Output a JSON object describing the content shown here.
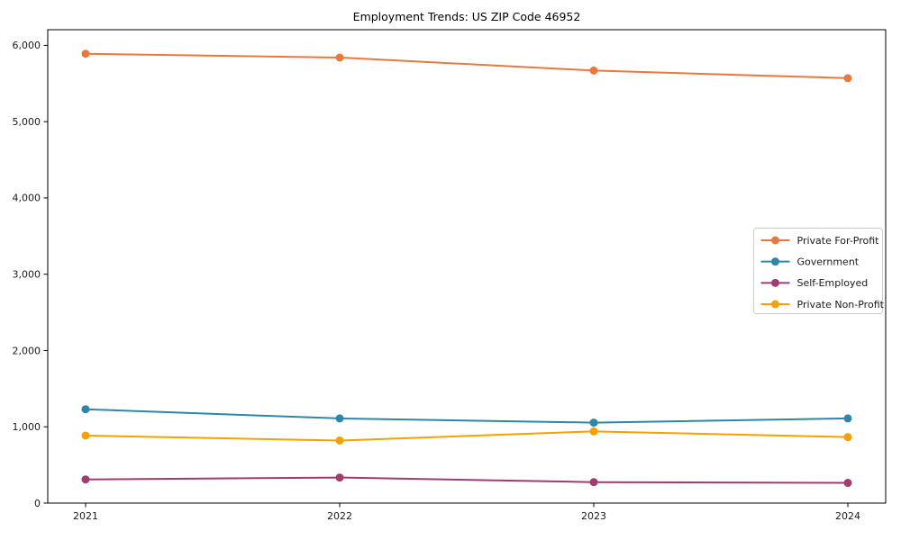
{
  "page": {
    "background": "#ffffff"
  },
  "chart_data": {
    "type": "line",
    "title": "Employment Trends: US ZIP Code 46952",
    "xlabel": "",
    "ylabel": "",
    "categories": [
      "2021",
      "2022",
      "2023",
      "2024"
    ],
    "ylim": [
      0,
      6000
    ],
    "yticks": [
      0,
      1000,
      2000,
      3000,
      4000,
      5000,
      6000
    ],
    "ytick_labels": [
      "0",
      "1,000",
      "2,000",
      "3,000",
      "4,000",
      "5,000",
      "6,000"
    ],
    "grid": false,
    "legend": {
      "position": "right-middle",
      "border_color": "#cccccc",
      "background": "#ffffff",
      "entries": [
        "Private For-Profit",
        "Government",
        "Self-Employed",
        "Private Non-Profit"
      ]
    },
    "series": [
      {
        "name": "Private For-Profit",
        "color": "#E8793E",
        "marker": "circle",
        "values": [
          5890,
          5840,
          5670,
          5570
        ]
      },
      {
        "name": "Government",
        "color": "#2E86A8",
        "marker": "circle",
        "values": [
          1230,
          1110,
          1055,
          1110
        ]
      },
      {
        "name": "Self-Employed",
        "color": "#A23B72",
        "marker": "circle",
        "values": [
          310,
          335,
          275,
          265
        ]
      },
      {
        "name": "Private Non-Profit",
        "color": "#F5A100",
        "marker": "circle",
        "values": [
          885,
          820,
          940,
          865
        ]
      }
    ]
  }
}
